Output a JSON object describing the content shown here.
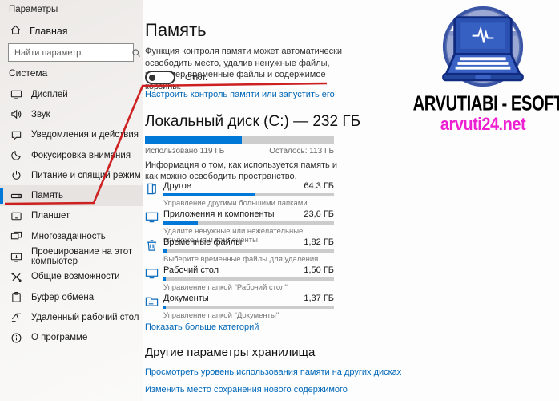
{
  "window": {
    "title": "Параметры"
  },
  "sidebar": {
    "home_label": "Главная",
    "search_placeholder": "Найти параметр",
    "section_label": "Система",
    "items": [
      {
        "label": "Дисплей"
      },
      {
        "label": "Звук"
      },
      {
        "label": "Уведомления и действия"
      },
      {
        "label": "Фокусировка внимания"
      },
      {
        "label": "Питание и спящий режим"
      },
      {
        "label": "Память",
        "selected": true
      },
      {
        "label": "Планшет"
      },
      {
        "label": "Многозадачность"
      },
      {
        "label": "Проецирование на этот компьютер"
      },
      {
        "label": "Общие возможности"
      },
      {
        "label": "Буфер обмена"
      },
      {
        "label": "Удаленный рабочий стол"
      },
      {
        "label": "О программе"
      }
    ]
  },
  "main": {
    "title": "Память",
    "description": "Функция контроля памяти может автоматически освободить место, удалив ненужные файлы, например временные файлы и содержимое корзины.",
    "toggle": {
      "state_label": "Откл.",
      "on": false
    },
    "configure_link": "Настроить контроль памяти или запустить его",
    "disk": {
      "title": "Локальный диск (C:) — 232 ГБ",
      "used_label": "Использовано 119 ГБ",
      "free_label": "Осталось: 113 ГБ",
      "used_percent": 51.3,
      "info": "Информация о том, как используется память и как можно освободить пространство."
    },
    "categories": [
      {
        "name": "Другое",
        "size": "64.3 ГБ",
        "percent": 54,
        "sub": "Управление другими большими папками"
      },
      {
        "name": "Приложения и компоненты",
        "size": "23,6 ГБ",
        "percent": 20,
        "sub": "Удалите ненужные или нежелательные приложения и компоненты"
      },
      {
        "name": "Временные файлы",
        "size": "1,82 ГБ",
        "percent": 2.2,
        "sub": "Выберите временные файлы для удаления"
      },
      {
        "name": "Рабочий стол",
        "size": "1,50 ГБ",
        "percent": 1.6,
        "sub": "Управление папкой \"Рабочий стол\""
      },
      {
        "name": "Документы",
        "size": "1,37 ГБ",
        "percent": 1.5,
        "sub": "Управление папкой \"Документы\""
      }
    ],
    "show_more_link": "Показать больше категорий",
    "other_section": {
      "title": "Другие параметры хранилища",
      "links": [
        "Просмотреть уровень использования памяти на других дисках",
        "Изменить место сохранения нового содержимого"
      ]
    }
  },
  "watermark": {
    "brand": "ARVUTIABI - ESOFT",
    "site": "arvuti24.net"
  },
  "colors": {
    "accent": "#0078d7",
    "link": "#0067b8",
    "annotation_red": "#cd2121",
    "brand_magenta": "#ee1fd1"
  }
}
